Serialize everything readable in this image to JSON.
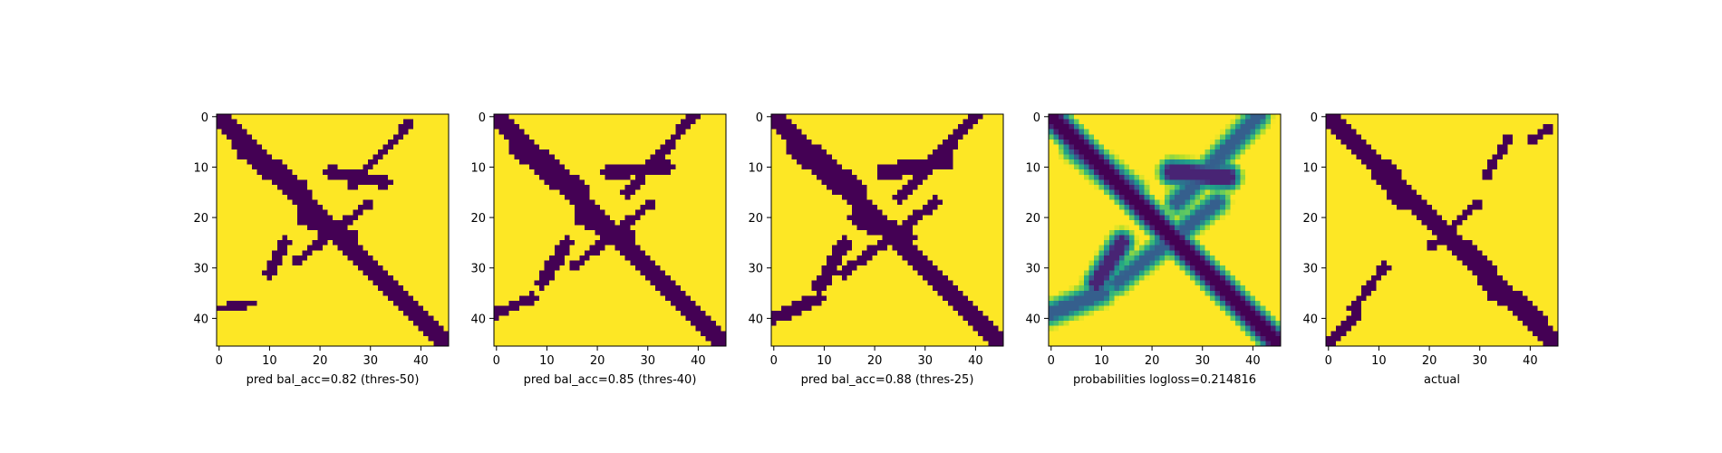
{
  "chart_data": [
    {
      "type": "heatmap",
      "title": "",
      "xlabel": "pred bal_acc=0.82 (thres-50)",
      "ylabel": "",
      "colormap": "viridis",
      "grid": false,
      "matrix_size": 46,
      "xlim": [
        -0.5,
        45.5
      ],
      "ylim": [
        45.5,
        -0.5
      ],
      "x_ticks": [
        0,
        10,
        20,
        30,
        40
      ],
      "y_ticks": [
        0,
        10,
        20,
        30,
        40
      ],
      "binary": true,
      "bands": [
        {
          "from": [
            0,
            0
          ],
          "to": [
            45,
            45
          ],
          "width": 1.5,
          "value": 0
        },
        {
          "from": [
            5,
            6
          ],
          "to": [
            16,
            15
          ],
          "width": 2.2,
          "value": 0
        },
        {
          "from": [
            17,
            20
          ],
          "to": [
            26,
            24
          ],
          "width": 1.6,
          "value": 0
        },
        {
          "from": [
            22,
            11
          ],
          "to": [
            33,
            13
          ],
          "width": 1.2,
          "value": 0
        },
        {
          "from": [
            38,
            1
          ],
          "to": [
            26,
            14
          ],
          "width": 0.8,
          "value": 0
        },
        {
          "from": [
            30,
            17
          ],
          "to": [
            15,
            29
          ],
          "width": 0.8,
          "value": 0
        },
        {
          "from": [
            13,
            25
          ],
          "to": [
            10,
            31
          ],
          "width": 1.0,
          "value": 0
        },
        {
          "from": [
            0,
            38
          ],
          "to": [
            7,
            37
          ],
          "width": 0.8,
          "value": 0
        }
      ]
    },
    {
      "type": "heatmap",
      "title": "",
      "xlabel": "pred bal_acc=0.85 (thres-40)",
      "ylabel": "",
      "colormap": "viridis",
      "grid": false,
      "matrix_size": 46,
      "xlim": [
        -0.5,
        45.5
      ],
      "ylim": [
        45.5,
        -0.5
      ],
      "x_ticks": [
        0,
        10,
        20,
        30,
        40
      ],
      "y_ticks": [
        0,
        10,
        20,
        30,
        40
      ],
      "binary": true,
      "bands": [
        {
          "from": [
            0,
            0
          ],
          "to": [
            45,
            45
          ],
          "width": 1.7,
          "value": 0
        },
        {
          "from": [
            5,
            6
          ],
          "to": [
            16,
            15
          ],
          "width": 2.4,
          "value": 0
        },
        {
          "from": [
            17,
            20
          ],
          "to": [
            26,
            24
          ],
          "width": 1.8,
          "value": 0
        },
        {
          "from": [
            22,
            11
          ],
          "to": [
            34,
            10
          ],
          "width": 1.4,
          "value": 0
        },
        {
          "from": [
            39,
            0
          ],
          "to": [
            26,
            15
          ],
          "width": 1.0,
          "value": 0
        },
        {
          "from": [
            31,
            17
          ],
          "to": [
            15,
            30
          ],
          "width": 0.9,
          "value": 0
        },
        {
          "from": [
            14,
            25
          ],
          "to": [
            9,
            33
          ],
          "width": 1.3,
          "value": 0
        },
        {
          "from": [
            0,
            39
          ],
          "to": [
            7,
            36
          ],
          "width": 1.0,
          "value": 0
        }
      ]
    },
    {
      "type": "heatmap",
      "title": "",
      "xlabel": "pred bal_acc=0.88 (thres-25)",
      "ylabel": "",
      "colormap": "viridis",
      "grid": false,
      "matrix_size": 46,
      "xlim": [
        -0.5,
        45.5
      ],
      "ylim": [
        45.5,
        -0.5
      ],
      "x_ticks": [
        0,
        10,
        20,
        30,
        40
      ],
      "y_ticks": [
        0,
        10,
        20,
        30,
        40
      ],
      "binary": true,
      "bands": [
        {
          "from": [
            0,
            0
          ],
          "to": [
            45,
            45
          ],
          "width": 1.9,
          "value": 0
        },
        {
          "from": [
            5,
            6
          ],
          "to": [
            16,
            15
          ],
          "width": 2.6,
          "value": 0
        },
        {
          "from": [
            17,
            20
          ],
          "to": [
            26,
            24
          ],
          "width": 2.0,
          "value": 0
        },
        {
          "from": [
            22,
            11
          ],
          "to": [
            34,
            9
          ],
          "width": 1.6,
          "value": 0
        },
        {
          "from": [
            40,
            0
          ],
          "to": [
            25,
            16
          ],
          "width": 1.2,
          "value": 0
        },
        {
          "from": [
            32,
            17
          ],
          "to": [
            14,
            31
          ],
          "width": 1.0,
          "value": 0
        },
        {
          "from": [
            14,
            25
          ],
          "to": [
            9,
            34
          ],
          "width": 1.4,
          "value": 0
        },
        {
          "from": [
            0,
            40
          ],
          "to": [
            9,
            36
          ],
          "width": 1.3,
          "value": 0
        }
      ]
    },
    {
      "type": "heatmap",
      "title": "",
      "xlabel": "probabilities logloss=0.214816",
      "ylabel": "",
      "colormap": "viridis",
      "grid": false,
      "matrix_size": 46,
      "xlim": [
        -0.5,
        45.5
      ],
      "ylim": [
        45.5,
        -0.5
      ],
      "x_ticks": [
        0,
        10,
        20,
        30,
        40
      ],
      "y_ticks": [
        0,
        10,
        20,
        30,
        40
      ],
      "binary": false,
      "bands": [
        {
          "from": [
            0,
            0
          ],
          "to": [
            45,
            45
          ],
          "width": 1.3,
          "value": 0.0
        },
        {
          "from": [
            5,
            6
          ],
          "to": [
            16,
            15
          ],
          "width": 1.6,
          "value": 0.3
        },
        {
          "from": [
            24,
            11
          ],
          "to": [
            35,
            12
          ],
          "width": 1.3,
          "value": 0.1
        },
        {
          "from": [
            41,
            0
          ],
          "to": [
            25,
            17
          ],
          "width": 1.0,
          "value": 0.3
        },
        {
          "from": [
            33,
            17
          ],
          "to": [
            13,
            33
          ],
          "width": 0.9,
          "value": 0.3
        },
        {
          "from": [
            14,
            25
          ],
          "to": [
            9,
            33
          ],
          "width": 1.1,
          "value": 0.1
        },
        {
          "from": [
            0,
            39
          ],
          "to": [
            10,
            35
          ],
          "width": 1.1,
          "value": 0.3
        }
      ]
    },
    {
      "type": "heatmap",
      "title": "",
      "xlabel": "actual",
      "ylabel": "",
      "colormap": "viridis",
      "grid": false,
      "matrix_size": 46,
      "xlim": [
        -0.5,
        45.5
      ],
      "ylim": [
        45.5,
        -0.5
      ],
      "x_ticks": [
        0,
        10,
        20,
        30,
        40
      ],
      "y_ticks": [
        0,
        10,
        20,
        30,
        40
      ],
      "binary": true,
      "bands": [
        {
          "from": [
            0,
            0
          ],
          "to": [
            45,
            45
          ],
          "width": 1.6,
          "value": 0
        },
        {
          "from": [
            11,
            11
          ],
          "to": [
            15,
            16
          ],
          "width": 2.4,
          "value": 0
        },
        {
          "from": [
            28,
            27
          ],
          "to": [
            34,
            35
          ],
          "width": 2.2,
          "value": 0
        },
        {
          "from": [
            38,
            37
          ],
          "to": [
            43,
            43
          ],
          "width": 2.0,
          "value": 0
        },
        {
          "from": [
            36,
            4
          ],
          "to": [
            31,
            12
          ],
          "width": 0.9,
          "value": 0
        },
        {
          "from": [
            44,
            2
          ],
          "to": [
            40,
            5
          ],
          "width": 0.8,
          "value": 0
        },
        {
          "from": [
            30,
            17
          ],
          "to": [
            20,
            26
          ],
          "width": 0.8,
          "value": 0
        },
        {
          "from": [
            11,
            30
          ],
          "to": [
            5,
            38
          ],
          "width": 1.0,
          "value": 0
        },
        {
          "from": [
            6,
            39
          ],
          "to": [
            0,
            45
          ],
          "width": 0.9,
          "value": 0
        }
      ]
    }
  ]
}
